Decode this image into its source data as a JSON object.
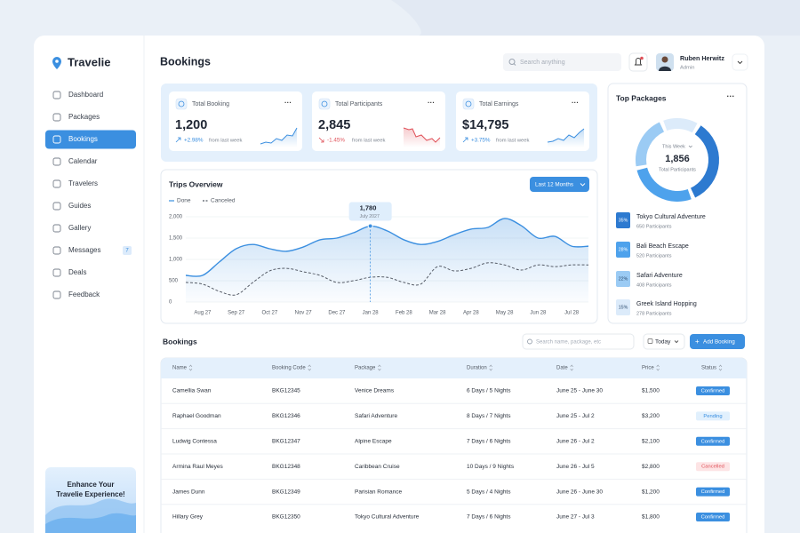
{
  "sidebar": {
    "brand": "Travelie",
    "menu": [
      "Dashboard",
      "Packages",
      "Bookings",
      "Calendar",
      "Travelers",
      "Guides",
      "Gallery",
      "Messages",
      "Deals",
      "Feedback"
    ],
    "messages_badge": 7,
    "promo": [
      "Enhance Your",
      "Travelie Experience!"
    ]
  },
  "header": {
    "title": "Bookings",
    "search_placeholder": "Search anything",
    "user_name": "Ruben Herwitz",
    "user_role": "Admin"
  },
  "stats": [
    {
      "title": "Total Booking",
      "value": "1,200",
      "change": "+2.98%",
      "note": "from last week"
    },
    {
      "title": "Total Participants",
      "value": "2,845",
      "change": "-1.45%",
      "note": "from last week"
    },
    {
      "title": "Total Earnings",
      "value": "$14,795",
      "change": "+3.75%",
      "note": "from last week"
    }
  ],
  "trips_overview": {
    "title": "Trips Overview",
    "range_button": "Last 12 Months",
    "tooltip": {
      "value": "1,780",
      "date": "July 2027"
    },
    "chart_data": {
      "type": "line",
      "categories": [
        null,
        "Aug 27",
        null,
        "Sep 27",
        null,
        "Oct 27",
        null,
        "Nov 27",
        null,
        "Dec 27",
        null,
        "Jan 28",
        null,
        "Feb 28",
        null,
        "Mar 28",
        null,
        "Apr 28",
        null,
        "May 28",
        null,
        "Jun 28",
        null,
        "Jul 28",
        null
      ],
      "series": [
        {
          "name": "Done",
          "color": "#3b8fe0",
          "values": [
            625,
            625,
            940,
            1250,
            1350,
            1250,
            1190,
            1290,
            1460,
            1500,
            1625,
            1780,
            1670,
            1460,
            1350,
            1420,
            1580,
            1710,
            1750,
            1960,
            1790,
            1500,
            1540,
            1310,
            1310
          ]
        },
        {
          "name": "Canceled",
          "color": "#555b66",
          "values": [
            460,
            420,
            250,
            170,
            460,
            730,
            790,
            710,
            625,
            460,
            500,
            580,
            580,
            460,
            420,
            830,
            730,
            790,
            920,
            870,
            750,
            870,
            830,
            870,
            870
          ]
        }
      ],
      "ylim": [
        0,
        2000
      ],
      "yticks": [
        0,
        500,
        {
          "value": 1000,
          "label": "1,000"
        },
        {
          "value": 1500,
          "label": "1,500"
        },
        {
          "value": 2000,
          "label": "2,000"
        }
      ],
      "grid": true
    }
  },
  "top_packages": {
    "title": "Top Packages",
    "center_caption": "This Week",
    "center_value": "1,856",
    "center_label": "Total Participants",
    "chart_data": {
      "type": "donut",
      "names": [
        "Tokyo Cultural Adventure",
        "Bali Beach Escape",
        "Safari Adventure",
        "Greek Island Hopping"
      ],
      "participants": [
        "650 Participants",
        "520 Participants",
        "408 Participants",
        "278 Participants"
      ],
      "values": [
        35,
        28,
        22,
        15
      ],
      "value_labels": [
        "35%",
        "28%",
        "22%",
        "15%"
      ],
      "colors": [
        "#2d7ad0",
        "#4ea2ec",
        "#9bcbf4",
        "#dcebfa"
      ]
    }
  },
  "bookings": {
    "title": "Bookings",
    "search_placeholder": "Search name, package, etc",
    "filter": "Today",
    "add_button": "Add Booking",
    "columns": [
      "Name",
      "Booking Code",
      "Package",
      "Duration",
      "Date",
      "Price",
      "Status"
    ],
    "rows": [
      [
        "Camellia Swan",
        "BKG12345",
        "Venice Dreams",
        "6 Days / 5 Nights",
        "June 25 - June 30",
        "$1,500",
        "Confirmed"
      ],
      [
        "Raphael Goodman",
        "BKG12346",
        "Safari Adventure",
        "8 Days / 7 Nights",
        "June 25 - Jul 2",
        "$3,200",
        "Pending"
      ],
      [
        "Ludwig Contessa",
        "BKG12347",
        "Alpine Escape",
        "7 Days / 6 Nights",
        "June 26 - Jul 2",
        "$2,100",
        "Confirmed"
      ],
      [
        "Armina Raul Meyes",
        "BKG12348",
        "Caribbean Cruise",
        "10 Days / 9 Nights",
        "June 26 - Jul 5",
        "$2,800",
        "Cancelled"
      ],
      [
        "James Dunn",
        "BKG12349",
        "Parisian Romance",
        "5 Days / 4 Nights",
        "June 26 - June 30",
        "$1,200",
        "Confirmed"
      ],
      [
        "Hillary Grey",
        "BKG12350",
        "Tokyo Cultural Adventure",
        "7 Days / 6 Nights",
        "June 27 - Jul 3",
        "$1,800",
        "Confirmed"
      ]
    ]
  }
}
